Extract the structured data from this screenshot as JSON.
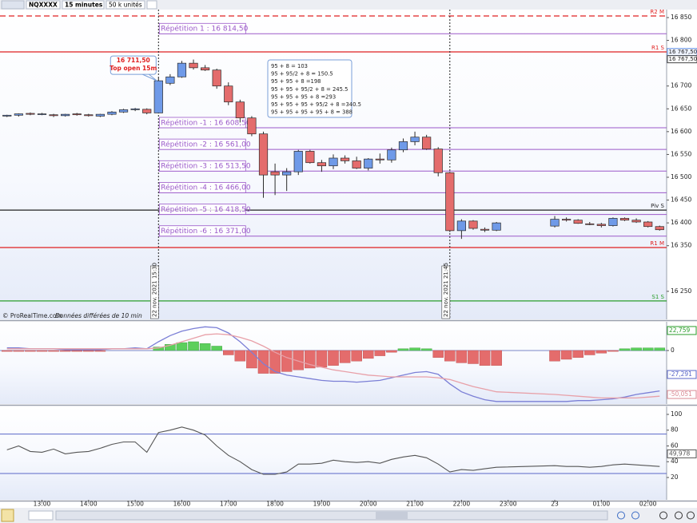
{
  "toolbar": {
    "symbol": "NQXXXX",
    "interval": "15 minutes",
    "units": "50 k unités"
  },
  "chart_data": [
    {
      "type": "candlestick",
      "x": [
        12.25,
        12.5,
        12.75,
        13,
        13.25,
        13.5,
        13.75,
        14,
        14.25,
        14.5,
        14.75,
        15,
        15.25,
        15.5,
        15.75,
        16,
        16.25,
        16.5,
        16.75,
        17,
        17.25,
        17.5,
        17.75,
        18,
        18.25,
        18.5,
        18.75,
        19,
        19.25,
        19.5,
        19.75,
        20,
        20.25,
        20.5,
        20.75,
        21,
        21.25,
        21.5,
        21.75,
        22,
        22.25,
        22.5,
        22.75,
        24,
        24.25,
        24.5,
        24.75,
        25,
        25.25,
        25.5,
        25.75,
        26,
        26.25
      ],
      "open": [
        16634,
        16636,
        16640,
        16638,
        16637,
        16635,
        16639,
        16637,
        16634,
        16638,
        16643,
        16648,
        16649,
        16641,
        16706,
        16720,
        16750,
        16740,
        16735,
        16700,
        16665,
        16630,
        16595,
        16512,
        16505,
        16512,
        16557,
        16532,
        16525,
        16542,
        16536,
        16520,
        16540,
        16538,
        16560,
        16578,
        16588,
        16562,
        16510,
        16383,
        16404,
        16386,
        16384,
        16393,
        16408,
        16406,
        16398,
        16397,
        16394,
        16410,
        16406,
        16402,
        16392
      ],
      "high": [
        16637,
        16640,
        16642,
        16641,
        16639,
        16639,
        16641,
        16639,
        16639,
        16645,
        16650,
        16652,
        16651,
        16718,
        16726,
        16755,
        16758,
        16746,
        16738,
        16708,
        16670,
        16634,
        16600,
        16530,
        16520,
        16560,
        16560,
        16538,
        16550,
        16548,
        16545,
        16542,
        16552,
        16565,
        16585,
        16600,
        16593,
        16566,
        16512,
        16408,
        16406,
        16390,
        16402,
        16415,
        16412,
        16408,
        16402,
        16400,
        16412,
        16412,
        16410,
        16404,
        16394
      ],
      "low": [
        16632,
        16633,
        16636,
        16636,
        16632,
        16633,
        16635,
        16633,
        16632,
        16636,
        16641,
        16645,
        16638,
        16640,
        16702,
        16718,
        16736,
        16733,
        16694,
        16658,
        16620,
        16590,
        16455,
        16461,
        16470,
        16505,
        16530,
        16512,
        16518,
        16530,
        16518,
        16515,
        16530,
        16532,
        16555,
        16570,
        16560,
        16502,
        16380,
        16365,
        16385,
        16380,
        16382,
        16390,
        16403,
        16398,
        16395,
        16390,
        16392,
        16404,
        16400,
        16390,
        16383
      ],
      "close": [
        16636,
        16639,
        16638,
        16639,
        16635,
        16638,
        16637,
        16635,
        16638,
        16643,
        16648,
        16650,
        16641,
        16711.5,
        16720,
        16750,
        16740,
        16735,
        16700,
        16665,
        16630,
        16595,
        16505,
        16505,
        16512,
        16557,
        16532,
        16525,
        16542,
        16536,
        16520,
        16540,
        16538,
        16560,
        16578,
        16588,
        16562,
        16510,
        16383,
        16404,
        16388,
        16384,
        16400,
        16408,
        16406,
        16399,
        16397,
        16394,
        16410,
        16406,
        16402,
        16392,
        16385
      ],
      "up_color": "#6f9ae8",
      "down_color": "#e46c6c",
      "xlim": [
        12.1,
        26.4
      ],
      "ylim": [
        16188.5,
        16867.5
      ],
      "yticks": [
        {
          "value": 16250,
          "label": "16 250"
        },
        {
          "value": 16350,
          "label": "16 350"
        },
        {
          "value": 16400,
          "label": "16 400"
        },
        {
          "value": 16450,
          "label": "16 450"
        },
        {
          "value": 16500,
          "label": "16 500"
        },
        {
          "value": 16550,
          "label": "16 550"
        },
        {
          "value": 16600,
          "label": "16 600"
        },
        {
          "value": 16650,
          "label": "16 650"
        },
        {
          "value": 16700,
          "label": "16 700"
        },
        {
          "value": 16800,
          "label": "16 800"
        },
        {
          "value": 16850,
          "label": "16 850"
        }
      ],
      "levels": [
        {
          "name": "R2 M",
          "value": 16853.5,
          "color": "#e02020",
          "dashed": true
        },
        {
          "name": "R1 S",
          "value": 16774.8,
          "color": "#e02020",
          "dashed": false
        },
        {
          "name": "Piv S",
          "value": 16428,
          "color": "#222222",
          "dashed": false
        },
        {
          "name": "R1 M",
          "value": 16346,
          "color": "#e02020",
          "dashed": false
        },
        {
          "name": "S1 S",
          "value": 16229,
          "color": "#2a9d2a",
          "dashed": false
        }
      ],
      "repetitions": [
        {
          "label": "Répétition 1 : 16 814,50",
          "value": 16814.5
        },
        {
          "label": "Répétition -1 : 16 608,50",
          "value": 16608.5
        },
        {
          "label": "Répétition -2 : 16 561,00",
          "value": 16561
        },
        {
          "label": "Répétition -3 : 16 513,50",
          "value": 16513.5
        },
        {
          "label": "Répétition -4 : 16 466,00",
          "value": 16466
        },
        {
          "label": "Répétition -5 : 16 418,50",
          "value": 16418.5
        },
        {
          "label": "Répétition -6 : 16 371,00",
          "value": 16371
        }
      ],
      "repetition_color": "#9b59c9",
      "markers": [
        {
          "x": 15.5,
          "label": "22 nov. 2021 15:30"
        },
        {
          "x": 21.75,
          "label": "22 nov. 2021 21:45"
        }
      ],
      "callout": {
        "x": 15.5,
        "value": 16711.5,
        "label": "16 711,50",
        "text": "Top open 15m"
      },
      "info_box": [
        "95 + 8 = 103",
        "95 + 95/2 + 8 = 150.5",
        "95 + 95 + 8 =198",
        "95 + 95 + 95/2 + 8 = 245.5",
        "95 + 95 + 95 + 8 =293",
        "95 + 95 + 95 + 95/2 + 8 =340.5",
        "95 + 95 + 95 + 95 + 8 = 388"
      ],
      "price_boxes": [
        {
          "value": 16767.5,
          "label": "16 767,50"
        },
        {
          "value": 16767.5,
          "label": "16 767,50"
        }
      ],
      "source": "© ProRealTime.com",
      "delay_note": "Données différées de 10 min"
    },
    {
      "type": "macd",
      "x": [
        12.25,
        12.5,
        12.75,
        13,
        13.25,
        13.5,
        13.75,
        14,
        14.25,
        14.5,
        14.75,
        15,
        15.25,
        15.5,
        15.75,
        16,
        16.25,
        16.5,
        16.75,
        17,
        17.25,
        17.5,
        17.75,
        18,
        18.25,
        18.5,
        18.75,
        19,
        19.25,
        19.5,
        19.75,
        20,
        20.25,
        20.5,
        20.75,
        21,
        21.25,
        21.5,
        21.75,
        22,
        22.25,
        22.5,
        22.75,
        24,
        24.25,
        24.5,
        24.75,
        25,
        25.25,
        25.5,
        25.75,
        26,
        26.25
      ],
      "histogram": [
        -1,
        -1,
        -1,
        -1,
        -1,
        -1,
        -1,
        -1,
        -1,
        0,
        0,
        0,
        0,
        4,
        7,
        9,
        10,
        8,
        5,
        -5,
        -12,
        -20,
        -26,
        -26,
        -24,
        -22,
        -20,
        -19,
        -17,
        -14,
        -12,
        -9,
        -6,
        -2,
        2,
        3,
        2,
        -8,
        -12,
        -14,
        -15,
        -17,
        -17,
        -12,
        -10,
        -8,
        -5,
        -3,
        -1,
        2,
        3,
        3,
        3
      ],
      "up_color": "#5ccf5c",
      "down_color": "#e46c6c",
      "lines": [
        {
          "color": "#7b7fd6",
          "values": [
            3,
            3,
            2,
            2,
            2,
            1,
            1,
            1,
            1,
            2,
            2,
            3,
            2,
            10,
            17,
            22,
            25,
            27,
            26,
            20,
            10,
            -2,
            -15,
            -24,
            -28,
            -30,
            -32,
            -34,
            -35,
            -35,
            -36,
            -35,
            -34,
            -31,
            -28,
            -25,
            -24,
            -27,
            -38,
            -47,
            -52,
            -56,
            -58,
            -58,
            -58,
            -57,
            -57,
            -56,
            -55,
            -53,
            -50,
            -48,
            -46
          ]
        },
        {
          "color": "#e8a0a8",
          "values": [
            2,
            2,
            2,
            2,
            2,
            2,
            2,
            2,
            2,
            2,
            2,
            2,
            2,
            3,
            6,
            10,
            14,
            18,
            19,
            18,
            15,
            11,
            5,
            -2,
            -8,
            -12,
            -16,
            -19,
            -22,
            -24,
            -26,
            -28,
            -29,
            -30,
            -30,
            -30,
            -30,
            -31,
            -33,
            -37,
            -41,
            -44,
            -47,
            -50,
            -51,
            -52,
            -53,
            -54,
            -54,
            -54,
            -54,
            -53,
            -52
          ]
        }
      ],
      "xlim": [
        12.1,
        26.4
      ],
      "ylim": [
        -60.9,
        32.7
      ],
      "yticks": [
        0
      ],
      "value_boxes": [
        {
          "value": 22.759,
          "label": "22,759",
          "color": "#2a9d2a"
        },
        {
          "value": -27.291,
          "label": "-27,291",
          "color": "#5a67c8"
        },
        {
          "value": -50.051,
          "label": "-50,051",
          "color": "#d98a94"
        }
      ]
    },
    {
      "type": "line",
      "x": [
        12.25,
        12.5,
        12.75,
        13,
        13.25,
        13.5,
        13.75,
        14,
        14.25,
        14.5,
        14.75,
        15,
        15.25,
        15.5,
        15.75,
        16,
        16.25,
        16.5,
        16.75,
        17,
        17.25,
        17.5,
        17.75,
        18,
        18.25,
        18.5,
        18.75,
        19,
        19.25,
        19.5,
        19.75,
        20,
        20.25,
        20.5,
        20.75,
        21,
        21.25,
        21.5,
        21.75,
        22,
        22.25,
        22.5,
        22.75,
        24,
        24.25,
        24.5,
        24.75,
        25,
        25.25,
        25.5,
        25.75,
        26,
        26.25
      ],
      "values": [
        55,
        60,
        53,
        52,
        56,
        50,
        52,
        53,
        57,
        62,
        65,
        65,
        52,
        77,
        80,
        84,
        80,
        74,
        60,
        48,
        40,
        30,
        24,
        24,
        27,
        37,
        37,
        38,
        42,
        40,
        39,
        40,
        38,
        43,
        46,
        48,
        45,
        37,
        27,
        30,
        29,
        31,
        33,
        35,
        34,
        34,
        33,
        34,
        36,
        37,
        36,
        35,
        34
      ],
      "color": "#555555",
      "levels": [
        75,
        25
      ],
      "level_color": "#5a67c8",
      "xlim": [
        12.1,
        26.4
      ],
      "ylim": [
        -8.35,
        110.1
      ],
      "yticks": [
        20,
        40,
        60,
        80,
        100
      ],
      "value_boxes": [
        {
          "value": 49.978,
          "label": "49,978",
          "color": "#555555"
        }
      ],
      "xticks": [
        {
          "value": 13,
          "label": "13:00"
        },
        {
          "value": 14,
          "label": "14:00"
        },
        {
          "value": 15,
          "label": "15:00"
        },
        {
          "value": 16,
          "label": "16:00"
        },
        {
          "value": 17,
          "label": "17:00"
        },
        {
          "value": 18,
          "label": "18:00"
        },
        {
          "value": 19,
          "label": "19:00"
        },
        {
          "value": 20,
          "label": "20:00"
        },
        {
          "value": 21,
          "label": "21:00"
        },
        {
          "value": 22,
          "label": "22:00"
        },
        {
          "value": 23,
          "label": "23:00"
        },
        {
          "value": 24,
          "label": "23"
        },
        {
          "value": 25,
          "label": "01:00"
        },
        {
          "value": 26,
          "label": "02:00"
        }
      ]
    }
  ]
}
